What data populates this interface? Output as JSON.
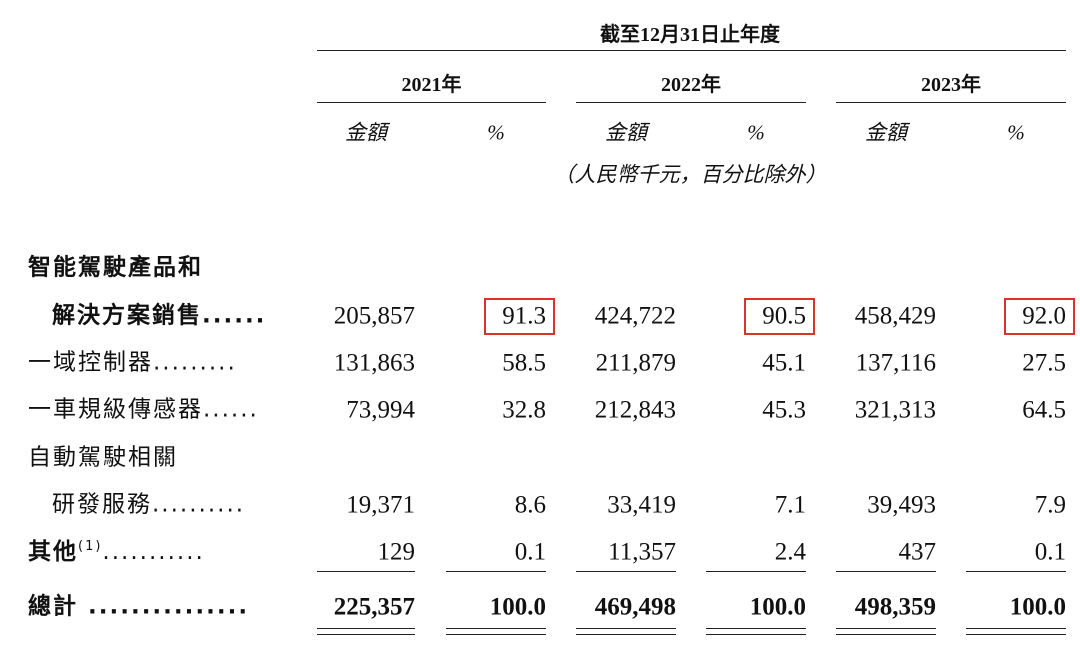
{
  "header": {
    "period": "截至12月31日止年度",
    "years": [
      "2021年",
      "2022年",
      "2023年"
    ],
    "columns": [
      "金額",
      "%",
      "金額",
      "%",
      "金額",
      "%"
    ],
    "unit_note": "（人民幣千元，百分比除外）"
  },
  "table": {
    "highlighted_columns": [
      1,
      3,
      5
    ],
    "rows": [
      {
        "label": [
          "智能駕駛產品和",
          "解決方案銷售......"
        ],
        "bold": true,
        "highlight": true,
        "cells": [
          "205,857",
          "91.3",
          "424,722",
          "90.5",
          "458,429",
          "92.0"
        ]
      },
      {
        "label": [
          "一域控制器........."
        ],
        "cells": [
          "131,863",
          "58.5",
          "211,879",
          "45.1",
          "137,116",
          "27.5"
        ]
      },
      {
        "label": [
          "一車規級傳感器......"
        ],
        "cells": [
          "73,994",
          "32.8",
          "212,843",
          "45.3",
          "321,313",
          "64.5"
        ]
      },
      {
        "label": [
          "自動駕駛相關",
          "研發服務.........."
        ],
        "cells": [
          "19,371",
          "8.6",
          "33,419",
          "7.1",
          "39,493",
          "7.9"
        ]
      },
      {
        "label": [
          "其他"
        ],
        "note": "(1)",
        "leader": "...........",
        "bold": true,
        "cells": [
          "129",
          "0.1",
          "11,357",
          "2.4",
          "437",
          "0.1"
        ]
      },
      {
        "label": [
          "總計 ..............."
        ],
        "bold": true,
        "total": true,
        "cells": [
          "225,357",
          "100.0",
          "469,498",
          "100.0",
          "498,359",
          "100.0"
        ]
      }
    ]
  }
}
